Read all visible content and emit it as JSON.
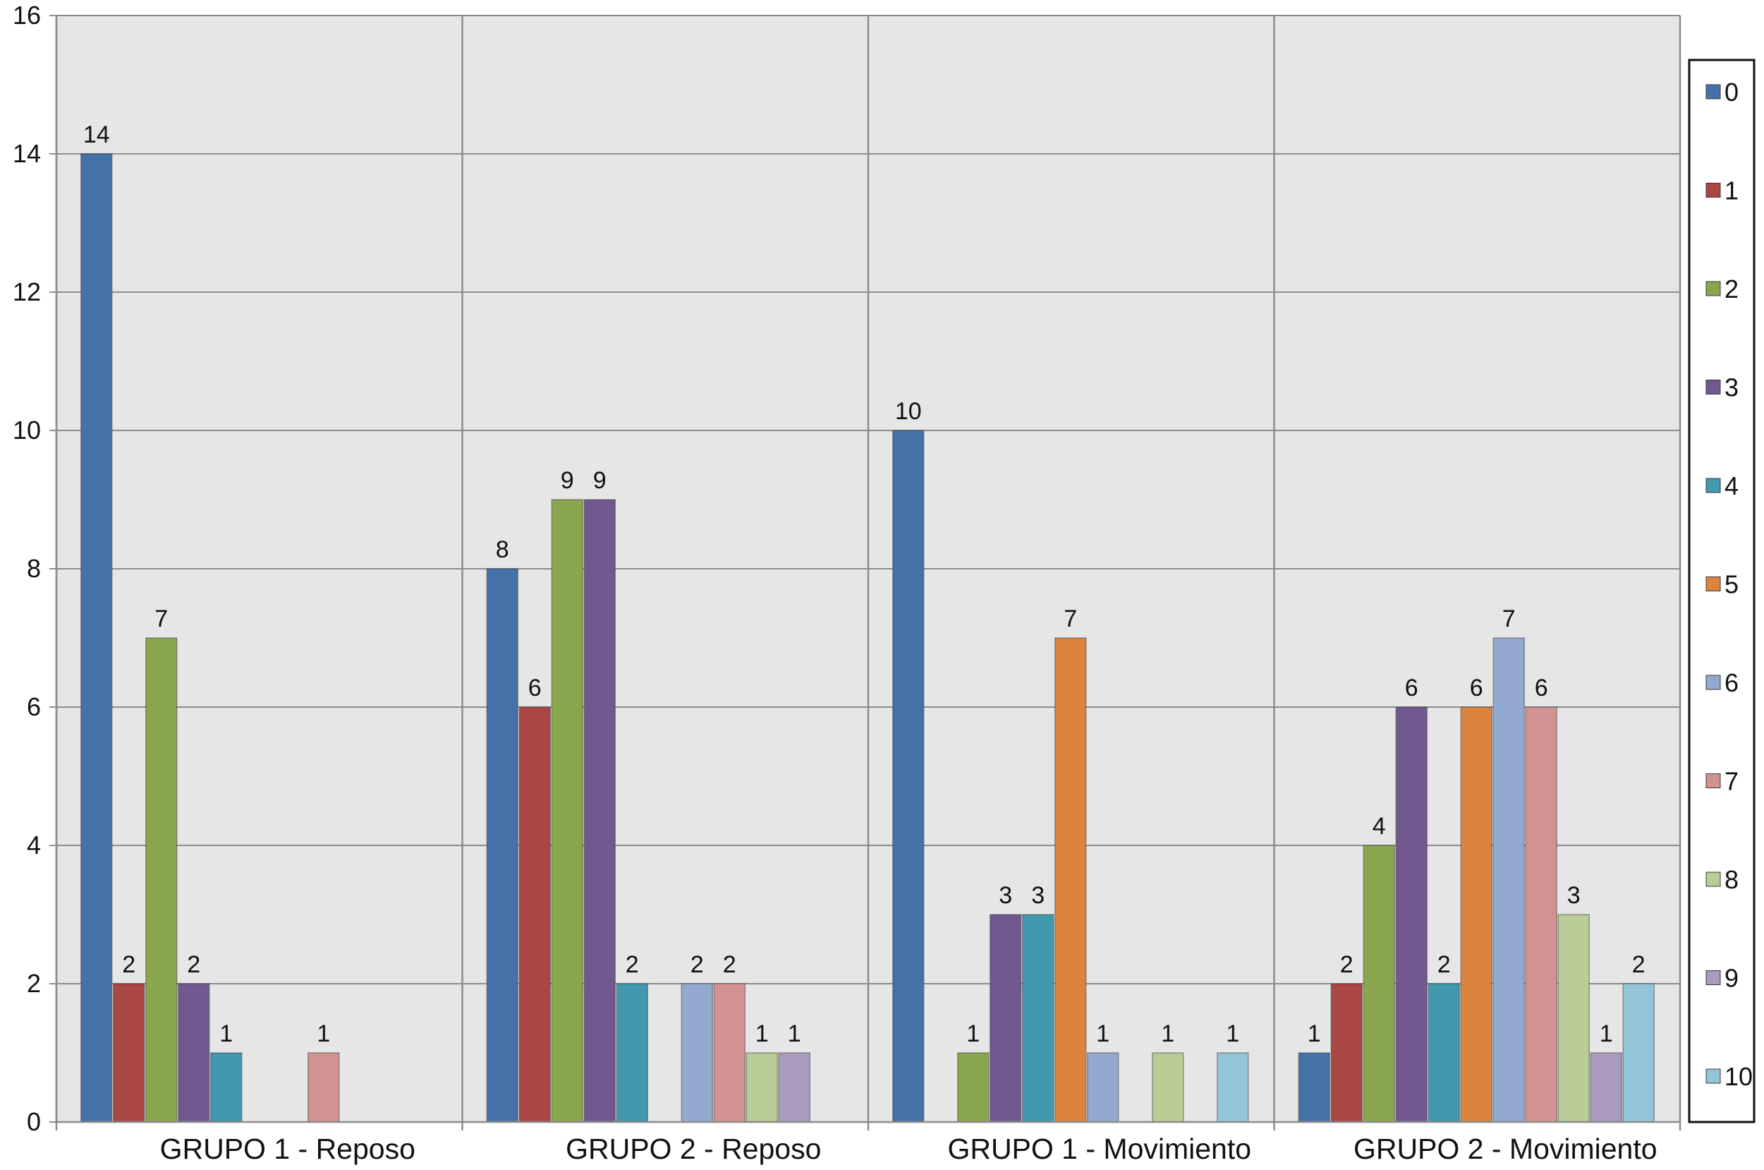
{
  "chart_data": {
    "type": "bar",
    "categories": [
      "GRUPO 1 - Reposo",
      "GRUPO 2 - Reposo",
      "GRUPO 1 - Movimiento",
      "GRUPO 2 - Movimiento"
    ],
    "series": [
      {
        "name": "0",
        "color": "#4472a8",
        "values": [
          14,
          8,
          10,
          1
        ]
      },
      {
        "name": "1",
        "color": "#aa4644",
        "values": [
          2,
          6,
          0,
          2
        ]
      },
      {
        "name": "2",
        "color": "#89a54e",
        "values": [
          7,
          9,
          1,
          4
        ]
      },
      {
        "name": "3",
        "color": "#71588f",
        "values": [
          2,
          9,
          3,
          6
        ]
      },
      {
        "name": "4",
        "color": "#4198af",
        "values": [
          1,
          2,
          3,
          2
        ]
      },
      {
        "name": "5",
        "color": "#db843d",
        "values": [
          0,
          0,
          7,
          6
        ]
      },
      {
        "name": "6",
        "color": "#93a9cf",
        "values": [
          0,
          2,
          1,
          7
        ]
      },
      {
        "name": "7",
        "color": "#d19392",
        "values": [
          1,
          2,
          0,
          6
        ]
      },
      {
        "name": "8",
        "color": "#b9cd96",
        "values": [
          0,
          1,
          1,
          3
        ]
      },
      {
        "name": "9",
        "color": "#a99bbd",
        "values": [
          0,
          1,
          0,
          1
        ]
      },
      {
        "name": "10",
        "color": "#92c5d7",
        "values": [
          0,
          0,
          1,
          2
        ]
      }
    ],
    "ylim": [
      0,
      16
    ],
    "yticks": [
      "0",
      "2",
      "4",
      "6",
      "8",
      "10",
      "12",
      "14",
      "16"
    ],
    "grid": true,
    "legend_position": "right",
    "plot_background": "#e6e6e6",
    "title": "",
    "xlabel": "",
    "ylabel": ""
  }
}
